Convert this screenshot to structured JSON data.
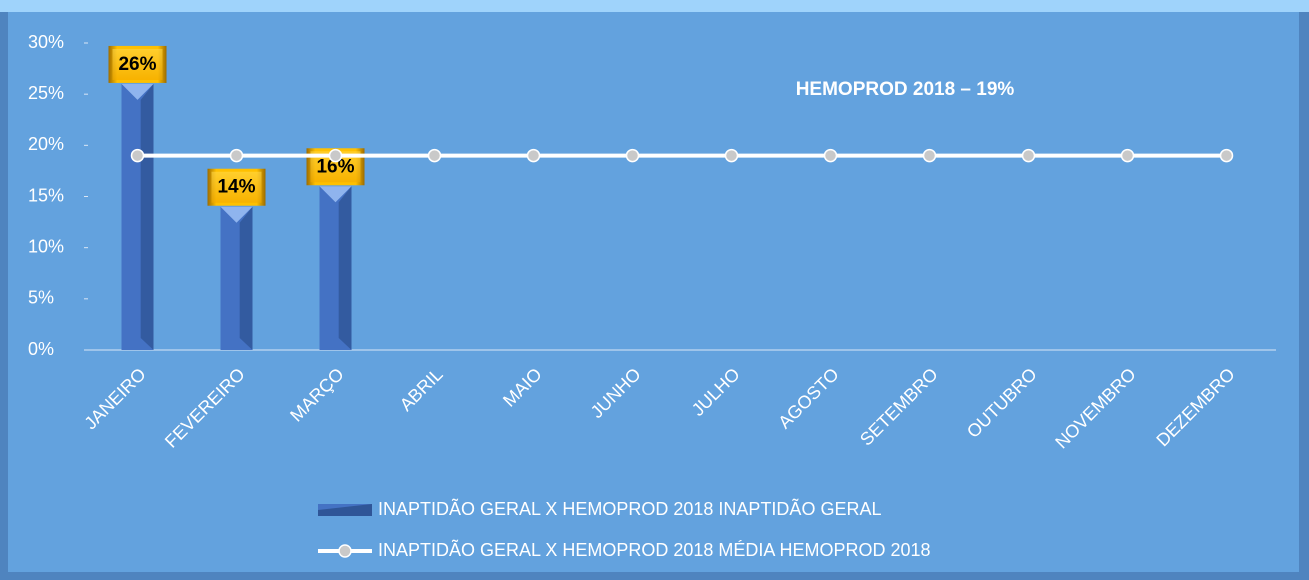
{
  "chart_data": {
    "type": "bar",
    "annotation": "HEMOPROD 2018 – 19%",
    "categories": [
      "JANEIRO",
      "FEVEREIRO",
      "MARÇO",
      "ABRIL",
      "MAIO",
      "JUNHO",
      "JULHO",
      "AGOSTO",
      "SETEMBRO",
      "OUTUBRO",
      "NOVEMBRO",
      "DEZEMBRO"
    ],
    "series": [
      {
        "name": "INAPTIDÃO GERAL X HEMOPROD 2018 INAPTIDÃO GERAL",
        "type": "bar",
        "color": "#4472c4",
        "values": [
          26,
          14,
          16,
          null,
          null,
          null,
          null,
          null,
          null,
          null,
          null,
          null
        ],
        "value_labels": [
          "26%",
          "14%",
          "16%",
          null,
          null,
          null,
          null,
          null,
          null,
          null,
          null,
          null
        ]
      },
      {
        "name": "INAPTIDÃO GERAL X HEMOPROD 2018 MÉDIA HEMOPROD 2018",
        "type": "line",
        "color": "#ffffff",
        "values": [
          19,
          19,
          19,
          19,
          19,
          19,
          19,
          19,
          19,
          19,
          19,
          19
        ]
      }
    ],
    "ylim": [
      0,
      30
    ],
    "yticks": [
      {
        "value": 0,
        "label": "0%"
      },
      {
        "value": 5,
        "label": "5%"
      },
      {
        "value": 10,
        "label": "10%"
      },
      {
        "value": 15,
        "label": "15%"
      },
      {
        "value": 20,
        "label": "20%"
      },
      {
        "value": 25,
        "label": "25%"
      },
      {
        "value": 30,
        "label": "30%"
      }
    ],
    "grid": false,
    "legend": "bottom"
  }
}
